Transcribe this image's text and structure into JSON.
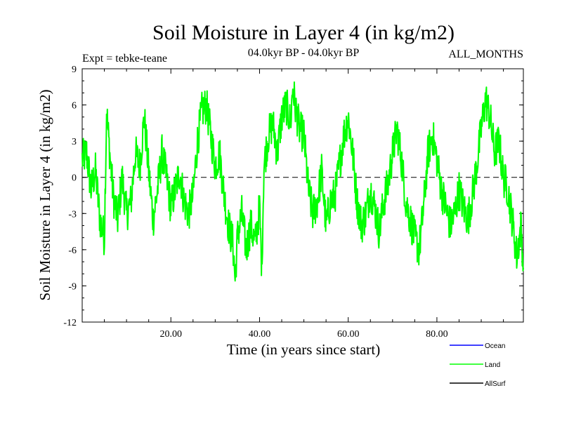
{
  "chart_data": {
    "type": "line",
    "title": "Soil Moisture in Layer 4 (in kg/m2)",
    "subtitle_left": "Expt = tebke-teane",
    "subtitle_center": "04.0kyr BP - 04.0kyr BP",
    "subtitle_right": "ALL_MONTHS",
    "xlabel": "Time (in years since start)",
    "ylabel": "Soil Moisture in Layer 4 (in kg/m2)",
    "xlim": [
      0.0,
      99.5
    ],
    "ylim": [
      -12,
      9
    ],
    "x_ticks": [
      20,
      40,
      60,
      80
    ],
    "x_tick_labels": [
      "20.00",
      "40.00",
      "60.00",
      "80.00"
    ],
    "y_ticks": [
      9,
      6,
      3,
      0,
      -3,
      -6,
      -9,
      -12
    ],
    "y_tick_labels": [
      "9",
      "6",
      "3",
      "0",
      "-3",
      "-6",
      "-9",
      "-12"
    ],
    "zero_line": 0,
    "legend": [
      {
        "name": "Ocean",
        "color": "#0000ff"
      },
      {
        "name": "Land",
        "color": "#00ff00"
      },
      {
        "name": "AllSurf",
        "color": "#000000"
      }
    ],
    "series": [
      {
        "name": "Land",
        "color": "#00ff00",
        "x": [
          0,
          1,
          2,
          3,
          4,
          5,
          5.5,
          6,
          7,
          8,
          9,
          10,
          11,
          12,
          13,
          14,
          15,
          16,
          17,
          18,
          19,
          20,
          21,
          22,
          23,
          24,
          25,
          26,
          27,
          28,
          29,
          30,
          31,
          32,
          33,
          34,
          34.5,
          35,
          36,
          37,
          38,
          39,
          40,
          40.5,
          41,
          42,
          43,
          44,
          45,
          46,
          47,
          47.5,
          48,
          49,
          50,
          51,
          52,
          53,
          54,
          55,
          56,
          57,
          58,
          59,
          60,
          61,
          62,
          63,
          64,
          65,
          66,
          67,
          68,
          69,
          70,
          71,
          72,
          73,
          74,
          75,
          76,
          77,
          78,
          79,
          80,
          81,
          82,
          83,
          84,
          85,
          86,
          87,
          88,
          89,
          90,
          91,
          92,
          93,
          94,
          95,
          96,
          97,
          98,
          99,
          99.5
        ],
        "values": [
          1.5,
          2.0,
          -1.0,
          0.5,
          -3.5,
          -5.0,
          5.5,
          3.0,
          -1.5,
          -3.5,
          0.0,
          -3.0,
          -2.0,
          2.0,
          1.0,
          5.0,
          0.5,
          -3.5,
          -1.0,
          2.0,
          0.0,
          -2.5,
          -1.0,
          0.5,
          -2.0,
          -3.0,
          -1.5,
          3.0,
          5.5,
          6.0,
          3.5,
          1.0,
          2.0,
          -1.5,
          -4.0,
          -5.5,
          -8.5,
          -5.0,
          -3.0,
          -6.0,
          -4.0,
          -5.5,
          -2.5,
          -7.5,
          1.0,
          3.5,
          4.5,
          2.0,
          5.0,
          6.0,
          4.5,
          7.5,
          6.0,
          4.0,
          3.5,
          -1.0,
          -3.0,
          -2.0,
          0.5,
          -4.0,
          -2.0,
          -1.5,
          1.0,
          3.5,
          5.0,
          2.0,
          -2.0,
          -4.0,
          -3.0,
          -1.0,
          -2.5,
          -4.5,
          -2.0,
          -0.5,
          2.0,
          4.0,
          1.5,
          -2.0,
          -3.5,
          -5.0,
          -6.0,
          -2.5,
          2.0,
          3.5,
          1.5,
          -1.0,
          -2.5,
          -4.0,
          -3.0,
          -1.0,
          -2.5,
          -3.5,
          -1.5,
          1.0,
          4.0,
          6.5,
          5.0,
          2.0,
          3.0,
          0.0,
          -1.0,
          -3.5,
          -6.5,
          -4.0,
          -7.5
        ]
      }
    ]
  }
}
